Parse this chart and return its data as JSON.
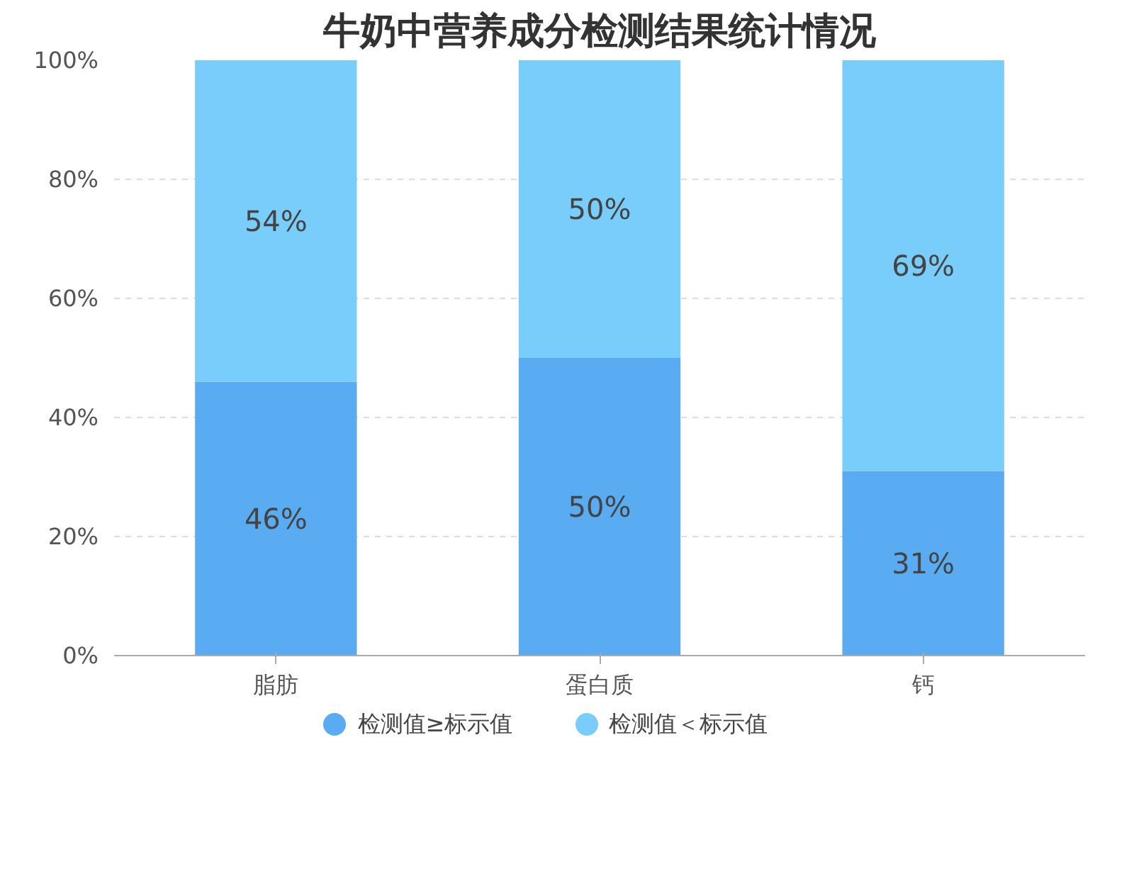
{
  "chart_data": {
    "type": "bar",
    "title": "牛奶中营养成分检测结果统计情况",
    "stacked": true,
    "categories": [
      "脂肪",
      "蛋白质",
      "钙"
    ],
    "series": [
      {
        "name": "检测值≥标示值",
        "color": "#59acf1",
        "values": [
          46,
          50,
          31
        ],
        "value_labels": [
          "46%",
          "50%",
          "31%"
        ]
      },
      {
        "name": "检测值＜标示值",
        "color": "#79cdfb",
        "values": [
          54,
          50,
          69
        ],
        "value_labels": [
          "54%",
          "50%",
          "69%"
        ]
      }
    ],
    "ylim": [
      0,
      100
    ],
    "yticks": [
      {
        "value": 0,
        "label": "0%"
      },
      {
        "value": 20,
        "label": "20%"
      },
      {
        "value": 40,
        "label": "40%"
      },
      {
        "value": 60,
        "label": "60%"
      },
      {
        "value": 80,
        "label": "80%"
      },
      {
        "value": 100,
        "label": "100%"
      }
    ],
    "grid": "y",
    "legend": "bottom"
  }
}
